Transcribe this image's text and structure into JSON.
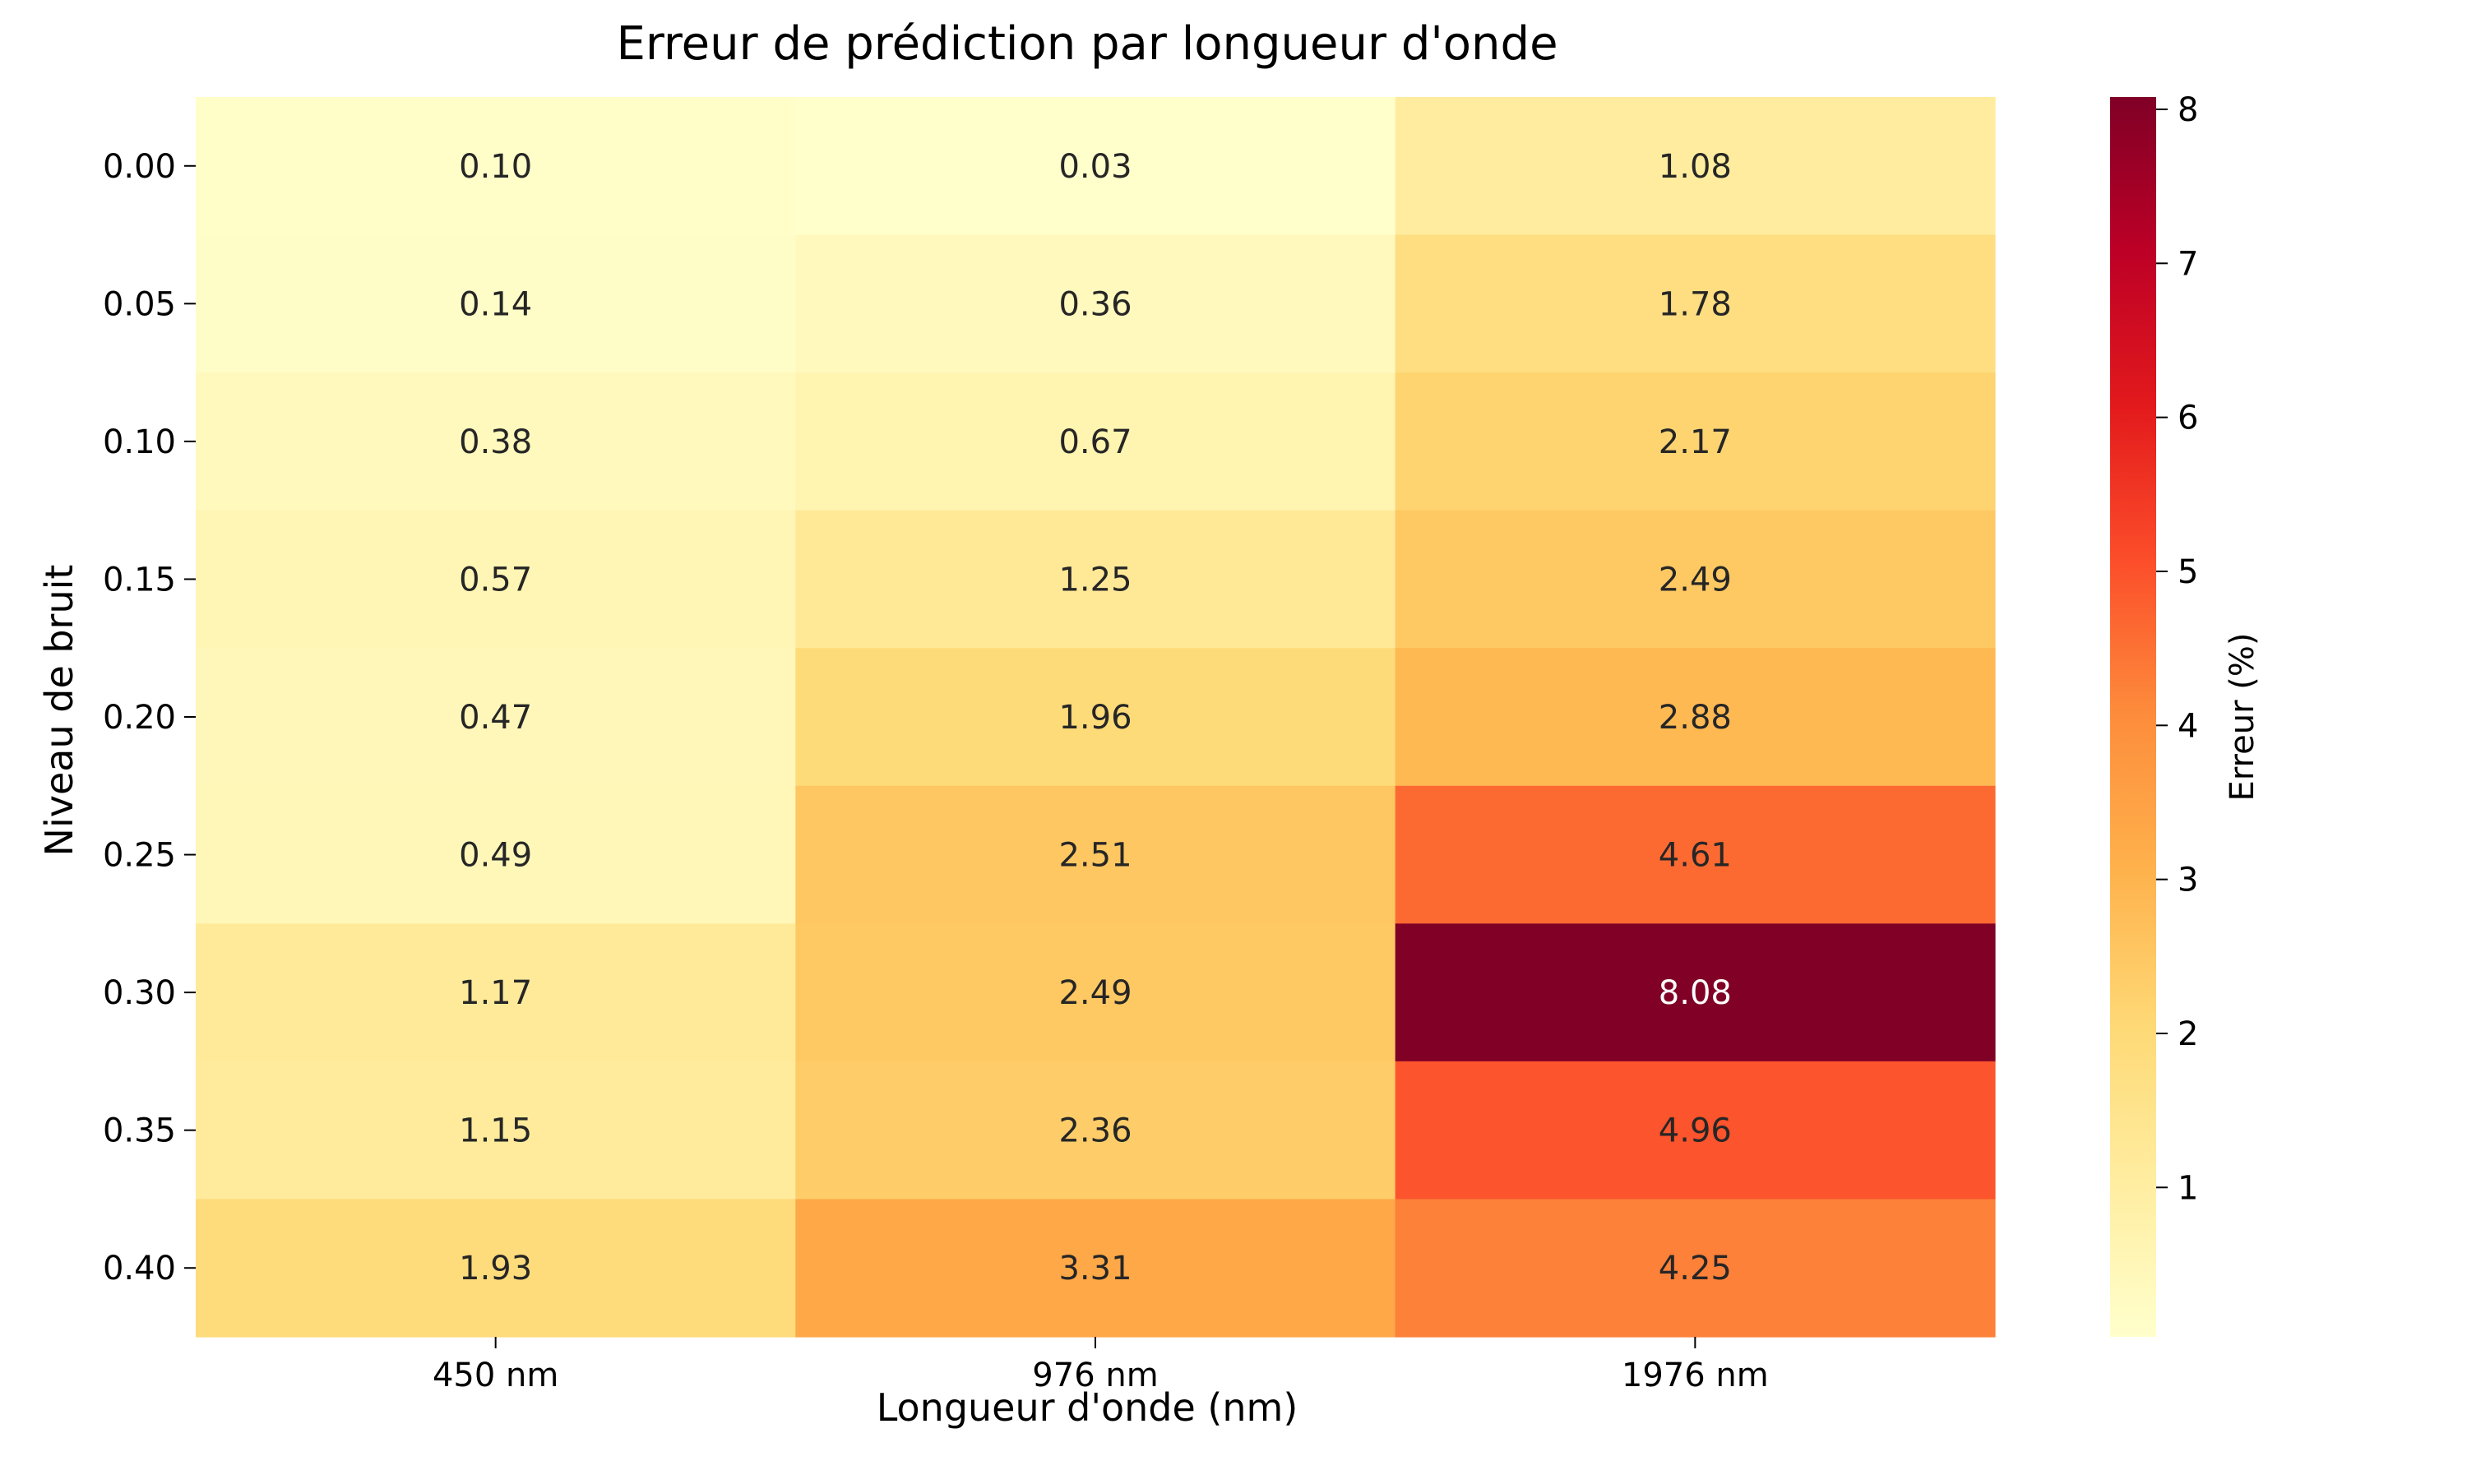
{
  "chart_data": {
    "type": "heatmap",
    "title": "Erreur de prédiction par longueur d'onde",
    "xlabel": "Longueur d'onde (nm)",
    "ylabel": "Niveau de bruit",
    "x_categories": [
      "450 nm",
      "976 nm",
      "1976 nm"
    ],
    "y_categories": [
      "0.00",
      "0.05",
      "0.10",
      "0.15",
      "0.20",
      "0.25",
      "0.30",
      "0.35",
      "0.40"
    ],
    "values": [
      [
        0.1,
        0.03,
        1.08
      ],
      [
        0.14,
        0.36,
        1.78
      ],
      [
        0.38,
        0.67,
        2.17
      ],
      [
        0.57,
        1.25,
        2.49
      ],
      [
        0.47,
        1.96,
        2.88
      ],
      [
        0.49,
        2.51,
        4.61
      ],
      [
        1.17,
        2.49,
        8.08
      ],
      [
        1.15,
        2.36,
        4.96
      ],
      [
        1.93,
        3.31,
        4.25
      ]
    ],
    "value_labels": [
      [
        "0.10",
        "0.03",
        "1.08"
      ],
      [
        "0.14",
        "0.36",
        "1.78"
      ],
      [
        "0.38",
        "0.67",
        "2.17"
      ],
      [
        "0.57",
        "1.25",
        "2.49"
      ],
      [
        "0.47",
        "1.96",
        "2.88"
      ],
      [
        "0.49",
        "2.51",
        "4.61"
      ],
      [
        "1.17",
        "2.49",
        "8.08"
      ],
      [
        "1.15",
        "2.36",
        "4.96"
      ],
      [
        "1.93",
        "3.31",
        "4.25"
      ]
    ],
    "colorbar": {
      "label": "Erreur (%)",
      "range": [
        0.03,
        8.08
      ],
      "ticks": [
        "1",
        "2",
        "3",
        "4",
        "5",
        "6",
        "7",
        "8"
      ],
      "colormap": "YlOrRd"
    },
    "colormap_stops": [
      "#ffffcc",
      "#ffeda0",
      "#fed976",
      "#feb24c",
      "#fd8d3c",
      "#fc4e2a",
      "#e31a1c",
      "#bd0026",
      "#800026"
    ],
    "text_colors": {
      "dark": "#262626",
      "light": "#ffffff"
    }
  }
}
